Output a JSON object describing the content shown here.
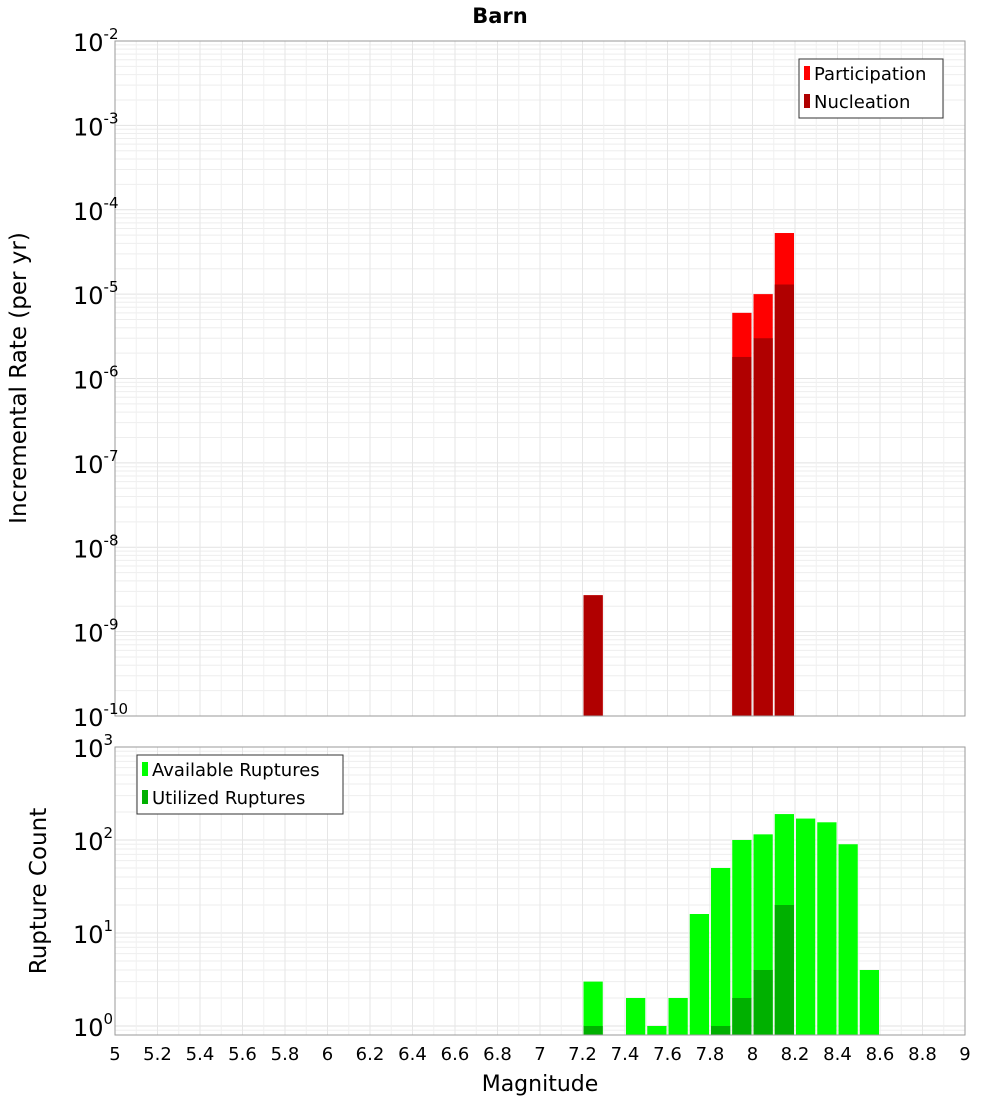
{
  "chart_data": [
    {
      "type": "bar",
      "title": "Barn",
      "ylabel": "Incremental Rate (per yr)",
      "xlabel": "",
      "yscale": "log",
      "ylim": [
        1e-10,
        0.01
      ],
      "xlim": [
        5,
        9
      ],
      "bar_width": 0.1,
      "grid": true,
      "legend_position": "top-right",
      "series": [
        {
          "name": "Participation",
          "color": "#ff0000",
          "x": [
            7.25,
            7.95,
            8.05,
            8.15
          ],
          "values": [
            2.7e-09,
            6e-06,
            1e-05,
            5.3e-05
          ]
        },
        {
          "name": "Nucleation",
          "color": "#b00000",
          "x": [
            7.25,
            7.95,
            8.05,
            8.15
          ],
          "values": [
            2.7e-09,
            1.8e-06,
            3e-06,
            1.3e-05
          ]
        }
      ],
      "ytick_exponents": [
        -10,
        -9,
        -8,
        -7,
        -6,
        -5,
        -4,
        -3,
        -2
      ]
    },
    {
      "type": "bar",
      "title": "",
      "ylabel": "Rupture Count",
      "xlabel": "Magnitude",
      "yscale": "log",
      "ylim": [
        0.8,
        1000
      ],
      "xlim": [
        5,
        9
      ],
      "bar_width": 0.1,
      "grid": true,
      "legend_position": "top-left",
      "series": [
        {
          "name": "Available Ruptures",
          "color": "#00ff00",
          "x": [
            7.25,
            7.45,
            7.55,
            7.65,
            7.75,
            7.85,
            7.95,
            8.05,
            8.15,
            8.25,
            8.35,
            8.45,
            8.55
          ],
          "values": [
            3,
            2,
            1,
            2,
            16,
            50,
            100,
            115,
            190,
            170,
            155,
            90,
            4
          ]
        },
        {
          "name": "Utilized Ruptures",
          "color": "#00b000",
          "x": [
            7.25,
            7.85,
            7.95,
            8.05,
            8.15
          ],
          "values": [
            1,
            1,
            2,
            4,
            20
          ]
        }
      ],
      "ytick_exponents": [
        0,
        1,
        2,
        3
      ],
      "xticks": [
        "5",
        "5.2",
        "5.4",
        "5.6",
        "5.8",
        "6",
        "6.2",
        "6.4",
        "6.6",
        "6.8",
        "7",
        "7.2",
        "7.4",
        "7.6",
        "7.8",
        "8",
        "8.2",
        "8.4",
        "8.6",
        "8.8",
        "9"
      ]
    }
  ]
}
